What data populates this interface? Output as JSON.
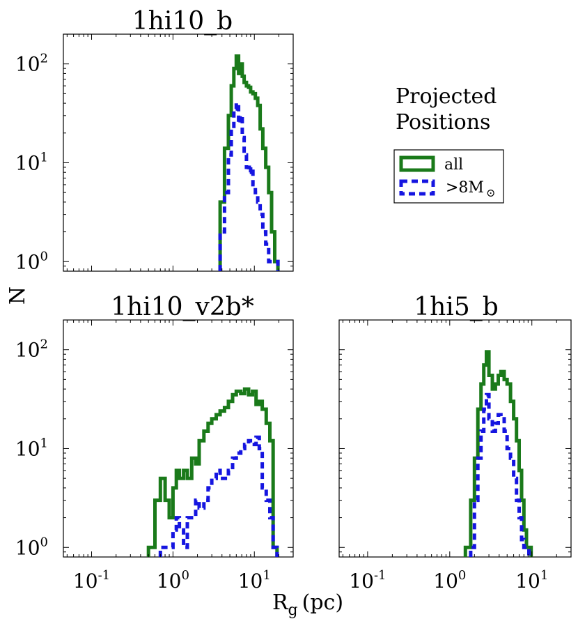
{
  "chart_data": [
    {
      "type": "histogram",
      "title": "1hi10_b",
      "xscale": "log",
      "yscale": "log",
      "xlim": [
        0.045,
        30
      ],
      "ylim": [
        0.8,
        200
      ],
      "xlabel": "",
      "ylabel": "N",
      "x_ticks": [],
      "y_ticks": [
        {
          "base": "10",
          "exp": "0",
          "value": 1
        },
        {
          "base": "10",
          "exp": "1",
          "value": 10
        },
        {
          "base": "10",
          "exp": "2",
          "value": 100
        }
      ],
      "series": [
        {
          "name": "all",
          "color": "#1a7a1a",
          "dash": "",
          "edges": [
            3.8,
            4.3,
            4.8,
            5.2,
            5.6,
            6.0,
            6.4,
            6.7,
            7.1,
            7.5,
            8.0,
            8.5,
            9.0,
            9.6,
            10.3,
            11.0,
            11.8,
            12.7,
            13.8,
            15.0,
            16.3,
            17.8,
            19.5
          ],
          "counts": [
            4,
            14,
            30,
            60,
            90,
            120,
            80,
            100,
            75,
            65,
            60,
            58,
            52,
            50,
            45,
            38,
            22,
            14,
            9,
            5,
            2,
            1
          ]
        },
        {
          "name": ">8M⊙",
          "color": "#1515e0",
          "dash": "9,6",
          "edges": [
            3.8,
            4.3,
            4.8,
            5.2,
            5.6,
            6.0,
            6.4,
            6.7,
            7.1,
            7.5,
            8.0,
            8.5,
            9.0,
            9.6,
            10.3,
            11.0,
            11.8,
            12.7,
            13.8,
            15.0,
            16.3,
            17.8,
            19.5
          ],
          "counts": [
            2,
            5,
            12,
            22,
            35,
            40,
            25,
            30,
            18,
            12,
            9,
            8,
            9,
            6,
            5,
            4,
            3,
            2,
            1.5,
            1,
            1,
            1
          ]
        }
      ]
    },
    {
      "type": "histogram",
      "title": "1hi10_v2b*",
      "xscale": "log",
      "yscale": "log",
      "xlim": [
        0.045,
        30
      ],
      "ylim": [
        0.8,
        200
      ],
      "xlabel": "",
      "ylabel": "N",
      "x_ticks": [
        {
          "base": "10",
          "exp": "-1",
          "value": 0.1
        },
        {
          "base": "10",
          "exp": "0",
          "value": 1
        },
        {
          "base": "10",
          "exp": "1",
          "value": 10
        }
      ],
      "y_ticks": [
        {
          "base": "10",
          "exp": "0",
          "value": 1
        },
        {
          "base": "10",
          "exp": "1",
          "value": 10
        },
        {
          "base": "10",
          "exp": "2",
          "value": 100
        }
      ],
      "series": [
        {
          "name": "all",
          "color": "#1a7a1a",
          "dash": "",
          "edges": [
            0.5,
            0.6,
            0.7,
            0.8,
            0.9,
            1.0,
            1.1,
            1.2,
            1.35,
            1.5,
            1.7,
            1.9,
            2.1,
            2.4,
            2.7,
            3.0,
            3.4,
            3.8,
            4.3,
            4.8,
            5.4,
            6.0,
            6.8,
            7.6,
            8.5,
            9.5,
            10.5,
            11.5,
            12.5,
            14.0,
            15.5,
            17.0,
            19.0
          ],
          "counts": [
            1,
            3,
            5,
            3,
            2,
            4,
            6,
            5,
            6,
            5,
            8,
            7,
            12,
            15,
            18,
            20,
            22,
            24,
            26,
            30,
            35,
            38,
            36,
            40,
            35,
            38,
            28,
            30,
            25,
            18,
            12,
            1
          ]
        },
        {
          "name": ">8M⊙",
          "color": "#1515e0",
          "dash": "9,6",
          "edges": [
            0.7,
            0.8,
            0.9,
            1.0,
            1.1,
            1.2,
            1.35,
            1.5,
            1.7,
            1.9,
            2.1,
            2.4,
            2.7,
            3.0,
            3.4,
            3.8,
            4.3,
            4.8,
            5.4,
            6.0,
            6.8,
            7.6,
            8.5,
            9.5,
            10.5,
            11.5,
            12.5,
            14.0,
            15.5,
            17.0,
            19.0
          ],
          "counts": [
            1,
            1,
            1,
            1.5,
            2,
            1.5,
            1,
            2,
            2,
            3,
            2.5,
            3,
            4,
            5,
            6,
            5,
            5,
            6,
            8,
            9,
            10,
            11,
            12,
            11,
            13,
            10,
            4,
            3,
            2,
            1
          ]
        }
      ]
    },
    {
      "type": "histogram",
      "title": "1hi5_b",
      "xscale": "log",
      "yscale": "log",
      "xlim": [
        0.045,
        30
      ],
      "ylim": [
        0.8,
        200
      ],
      "xlabel": "",
      "ylabel": "",
      "x_ticks": [
        {
          "base": "10",
          "exp": "-1",
          "value": 0.1
        },
        {
          "base": "10",
          "exp": "0",
          "value": 1
        },
        {
          "base": "10",
          "exp": "1",
          "value": 10
        }
      ],
      "y_ticks": [],
      "series": [
        {
          "name": "all",
          "color": "#1a7a1a",
          "dash": "",
          "edges": [
            1.55,
            1.8,
            2.0,
            2.2,
            2.4,
            2.6,
            2.8,
            3.0,
            3.3,
            3.6,
            3.9,
            4.2,
            4.6,
            5.0,
            5.5,
            6.0,
            6.5,
            7.0,
            7.5,
            8.0,
            8.6,
            9.2,
            9.8
          ],
          "counts": [
            1,
            3,
            8,
            25,
            45,
            70,
            95,
            55,
            40,
            45,
            55,
            60,
            50,
            45,
            30,
            20,
            12,
            6,
            3,
            1.5,
            1,
            1
          ]
        },
        {
          "name": ">8M⊙",
          "color": "#1515e0",
          "dash": "9,6",
          "edges": [
            1.8,
            2.0,
            2.2,
            2.4,
            2.6,
            2.8,
            3.0,
            3.3,
            3.6,
            3.9,
            4.2,
            4.6,
            5.0,
            5.5,
            6.0,
            6.5,
            7.0,
            7.5,
            8.0,
            8.6,
            9.2
          ],
          "counts": [
            1,
            3,
            8,
            15,
            25,
            35,
            20,
            15,
            18,
            22,
            20,
            15,
            10,
            8,
            5,
            3,
            2,
            1.2,
            1,
            1
          ]
        }
      ]
    }
  ],
  "axis": {
    "y_label": "N",
    "x_label_main": "R",
    "x_label_sub": "g",
    "x_label_unit": "(pc)"
  },
  "legend": {
    "title_line1": "Projected",
    "title_line2": "Positions",
    "entries": [
      {
        "label": "all",
        "color": "#1a7a1a",
        "dash": ""
      },
      {
        "label_main": ">8M",
        "label_sub": "⊙",
        "color": "#1515e0",
        "dash": "9,6"
      }
    ]
  }
}
